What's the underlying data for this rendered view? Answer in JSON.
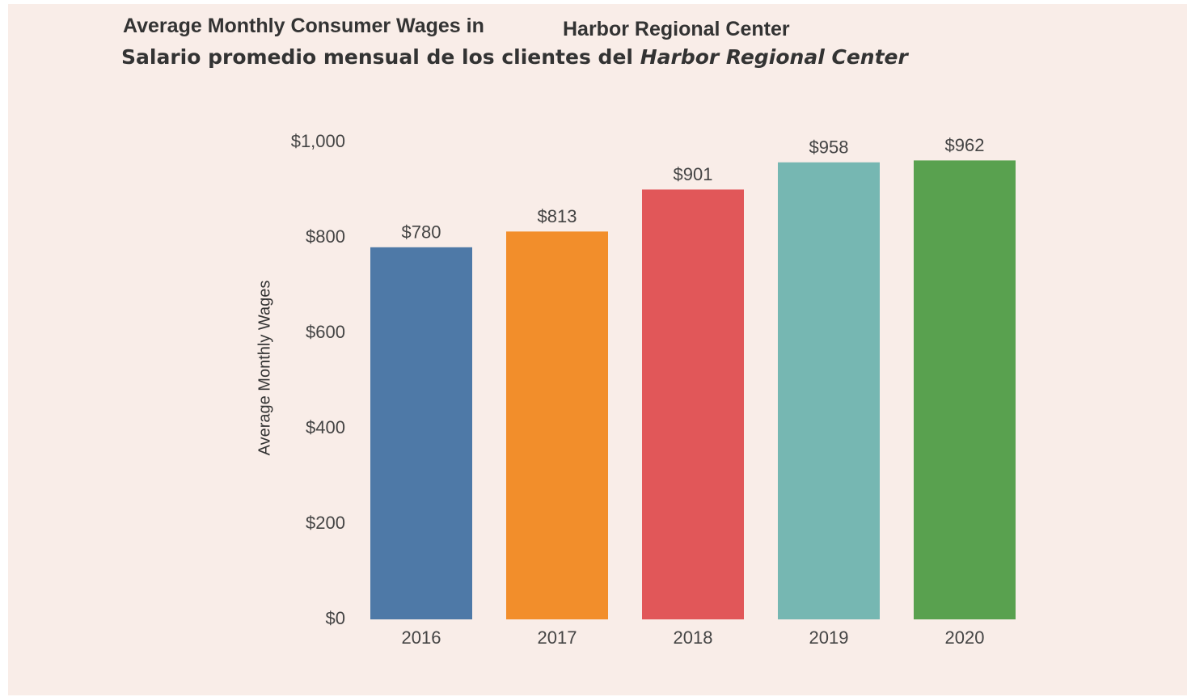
{
  "chart_data": {
    "type": "bar",
    "title": [
      "Average Monthly Consumer Wages in",
      "Harbor Regional Center"
    ],
    "subtitle": [
      "Salario promedio mensual de los clientes del",
      "Harbor Regional Center"
    ],
    "y_label": "Average Monthly Wages",
    "categories": [
      "2016",
      "2017",
      "2018",
      "2019",
      "2020"
    ],
    "values": [
      780,
      813,
      901,
      958,
      962
    ],
    "value_labels": [
      "$780",
      "$813",
      "$901",
      "$958",
      "$962"
    ],
    "colors": [
      "#4e79a7",
      "#f28e2b",
      "#e15759",
      "#76b7b2",
      "#59a14f"
    ],
    "ylim": [
      0,
      1000
    ],
    "yticks": [
      {
        "value": 0,
        "label": "$0"
      },
      {
        "value": 200,
        "label": "$200"
      },
      {
        "value": 400,
        "label": "$400"
      },
      {
        "value": 600,
        "label": "$600"
      },
      {
        "value": 800,
        "label": "$800"
      },
      {
        "value": 1000,
        "label": "$1,000"
      }
    ],
    "grid": false
  }
}
